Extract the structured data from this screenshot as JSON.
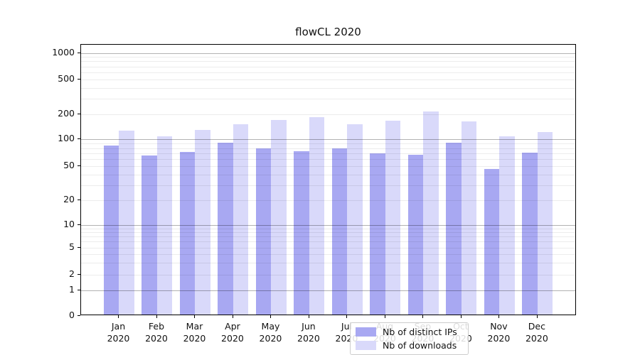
{
  "title": "flowCL 2020",
  "chart_data": {
    "type": "bar",
    "title": "flowCL 2020",
    "categories": [
      "Jan 2020",
      "Feb 2020",
      "Mar 2020",
      "Apr 2020",
      "May 2020",
      "Jun 2020",
      "Jul 2020",
      "Aug 2020",
      "Sep 2020",
      "Oct 2020",
      "Nov 2020",
      "Dec 2020"
    ],
    "series": [
      {
        "name": "Nb of distinct IPs",
        "color": "#a8a8f2",
        "values": [
          82,
          63,
          70,
          89,
          76,
          71,
          77,
          67,
          65,
          88,
          45,
          69
        ]
      },
      {
        "name": "Nb of downloads",
        "color": "#d9d9fa",
        "values": [
          123,
          104,
          126,
          145,
          165,
          178,
          145,
          160,
          209,
          158,
          105,
          118
        ]
      }
    ],
    "xlabel": "",
    "ylabel": "",
    "y_axis": {
      "scale": "symlog",
      "ticks": [
        0,
        1,
        2,
        5,
        10,
        20,
        50,
        100,
        200,
        500,
        1000
      ],
      "minor_gridlines": [
        3,
        4,
        6,
        7,
        8,
        9,
        30,
        40,
        60,
        70,
        80,
        90,
        300,
        400,
        600,
        700,
        800,
        900
      ],
      "major_gridline_values": [
        1,
        10,
        100,
        1000
      ]
    },
    "grid": "both",
    "legend_position": "lower center"
  }
}
